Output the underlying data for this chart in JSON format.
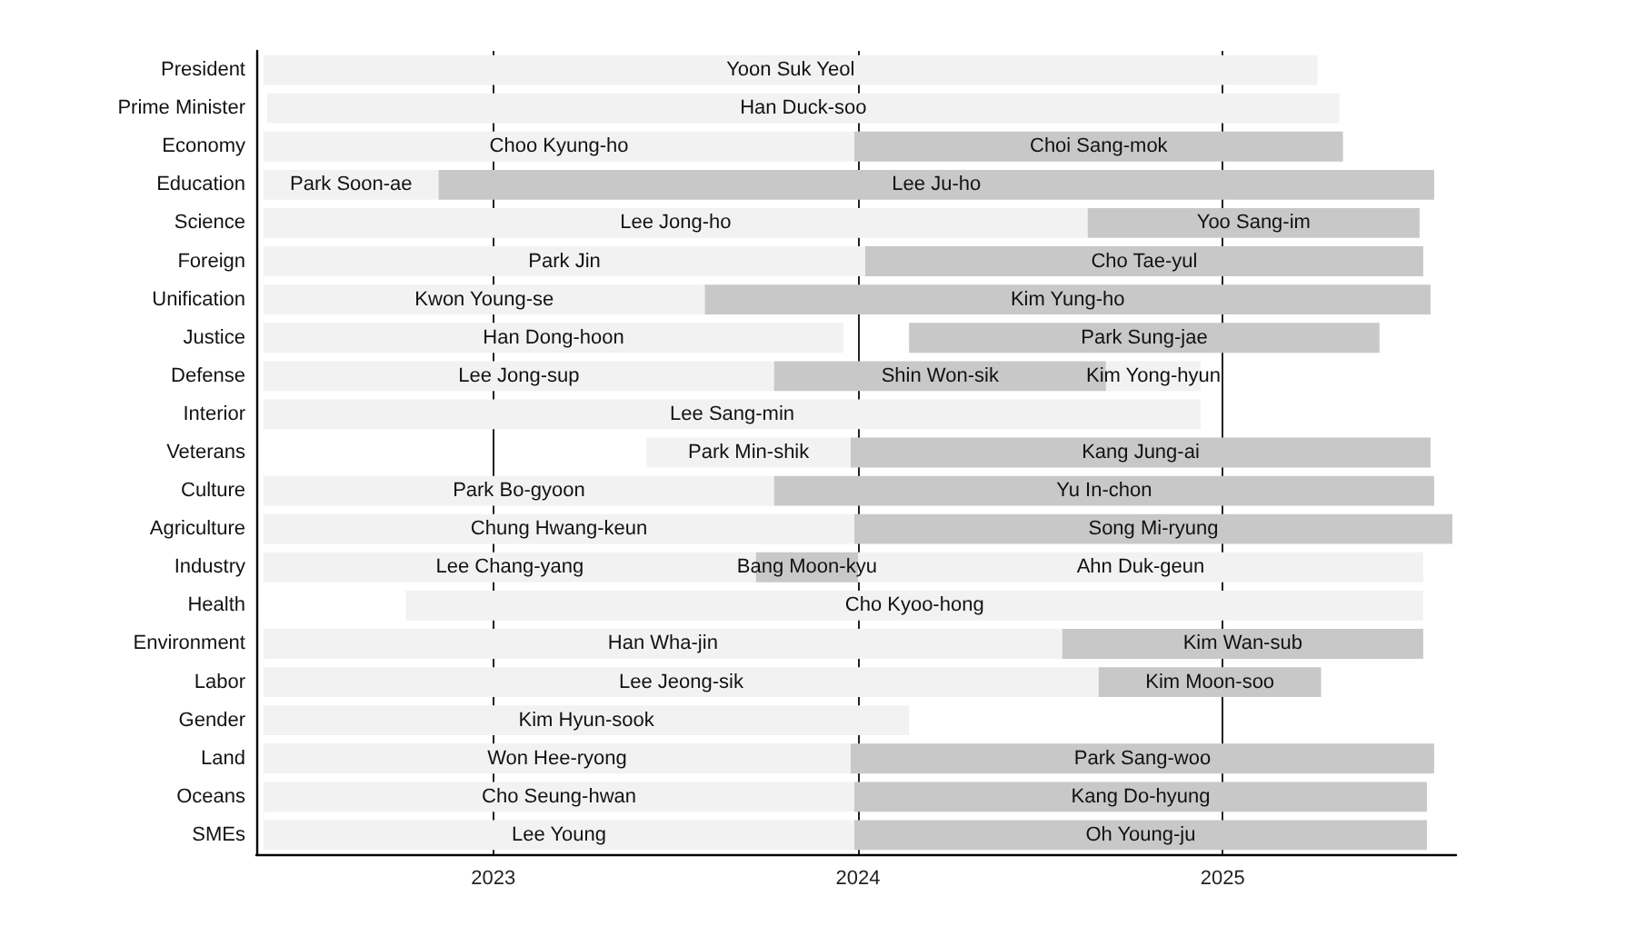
{
  "chart_data": {
    "type": "bar",
    "orientation": "horizontal",
    "categories": [
      "President",
      "Prime Minister",
      "Economy",
      "Education",
      "Science",
      "Foreign",
      "Unification",
      "Justice",
      "Defense",
      "Interior",
      "Veterans",
      "Culture",
      "Agriculture",
      "Industry",
      "Health",
      "Environment",
      "Labor",
      "Gender",
      "Land",
      "Oceans",
      "SMEs"
    ],
    "series": [
      {
        "color": "#f2f2f2",
        "base": [
          2022.37,
          2022.38,
          2022.37,
          2022.37,
          2022.37,
          2022.37,
          2022.37,
          2022.37,
          2022.37,
          2022.37,
          2023.42,
          2022.37,
          2022.37,
          2022.37,
          2022.76,
          2022.37,
          2022.37,
          2022.37,
          2022.37,
          2022.37,
          2022.37
        ],
        "values": [
          2.89,
          2.94,
          1.62,
          0.48,
          2.26,
          1.65,
          1.21,
          1.59,
          1.4,
          2.57,
          0.56,
          1.4,
          1.62,
          1.35,
          2.79,
          2.19,
          2.29,
          1.77,
          1.61,
          1.62,
          1.62
        ],
        "value_labels": [
          "Yoon Suk Yeol",
          "Han Duck-soo",
          "Choo Kyung-ho",
          "Park Soon-ae",
          "Lee Jong-ho",
          "Park Jin",
          "Kwon Young-se",
          "Han Dong-hoon",
          "Lee Jong-sup",
          "Lee Sang-min",
          "Park Min-shik",
          "Park Bo-gyoon",
          "Chung Hwang-keun",
          "Lee Chang-yang",
          "Cho Kyoo-hong",
          "Han Wha-jin",
          "Lee Jeong-sik",
          "Kim Hyun-sook",
          "Won Hee-ryong",
          "Cho Seung-hwan",
          "Lee Young"
        ]
      },
      {
        "color": "#c8c8c8",
        "base": [
          null,
          null,
          2023.99,
          2022.85,
          2024.63,
          2024.02,
          2023.58,
          2024.14,
          2023.77,
          null,
          2023.98,
          2023.77,
          2023.99,
          2023.72,
          null,
          2024.56,
          2024.66,
          null,
          2023.98,
          2023.99,
          2023.99
        ],
        "values": [
          null,
          null,
          1.34,
          2.73,
          0.91,
          1.53,
          1.99,
          1.29,
          0.91,
          null,
          1.59,
          1.81,
          1.64,
          0.28,
          null,
          0.99,
          0.61,
          null,
          1.6,
          1.57,
          1.57
        ],
        "value_labels": [
          null,
          null,
          "Choi Sang-mok",
          "Lee Ju-ho",
          "Yoo Sang-im",
          "Cho Tae-yul",
          "Kim Yung-ho",
          "Park Sung-jae",
          "Shin Won-sik",
          null,
          "Kang Jung-ai",
          "Yu In-chon",
          "Song Mi-ryung",
          "Bang Moon-kyu",
          null,
          "Kim Wan-sub",
          "Kim Moon-soo",
          null,
          "Park Sang-woo",
          "Kang Do-hyung",
          "Oh Young-ju"
        ]
      },
      {
        "color": "#f2f2f2",
        "base": [
          null,
          null,
          null,
          null,
          null,
          null,
          null,
          null,
          2024.68,
          null,
          null,
          null,
          null,
          2024.0,
          null,
          null,
          null,
          null,
          null,
          null,
          null
        ],
        "values": [
          null,
          null,
          null,
          null,
          null,
          null,
          null,
          null,
          0.26,
          null,
          null,
          null,
          null,
          1.55,
          null,
          null,
          null,
          null,
          null,
          null,
          null
        ],
        "value_labels": [
          null,
          null,
          null,
          null,
          null,
          null,
          null,
          null,
          "Kim Yong-hyun",
          null,
          null,
          null,
          null,
          "Ahn Duk-geun",
          null,
          null,
          null,
          null,
          null,
          null,
          null
        ]
      }
    ],
    "xlim": [
      2022.35,
      2025.64
    ],
    "xticks": [
      2023,
      2024,
      2025
    ],
    "grid": "x"
  }
}
